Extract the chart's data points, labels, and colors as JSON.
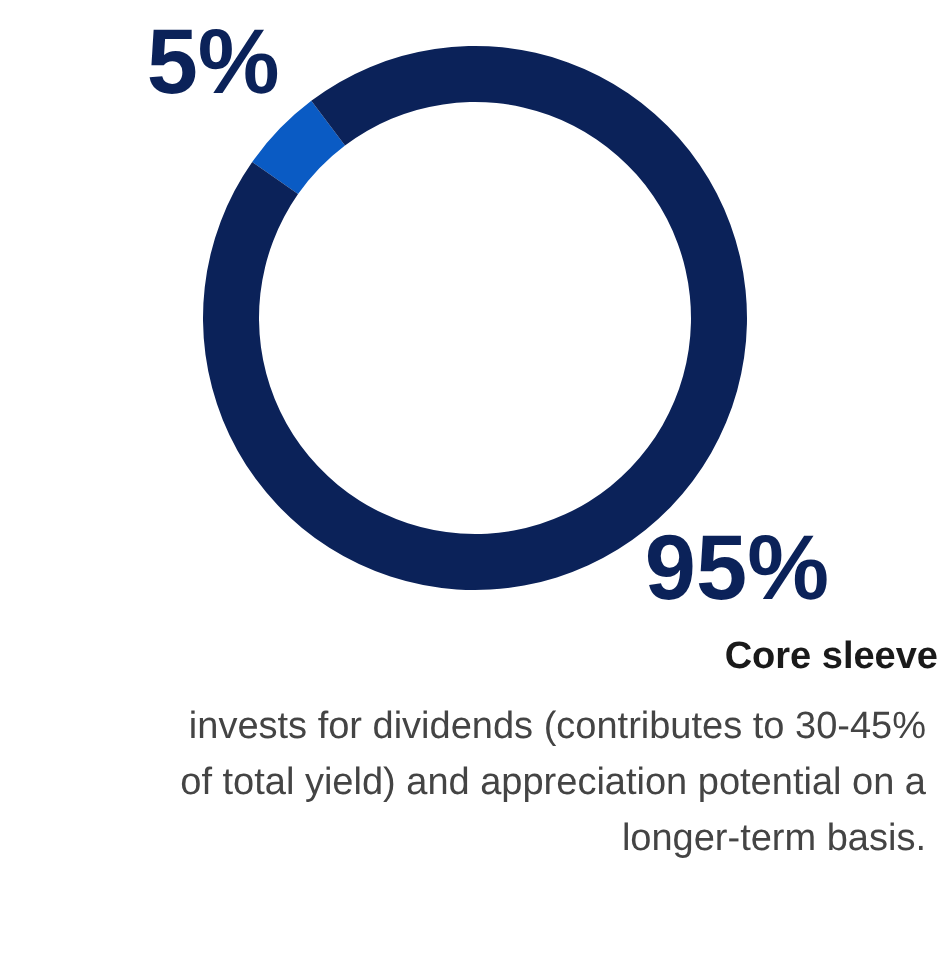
{
  "chart_data": {
    "type": "donut",
    "categories": [
      null,
      "Core sleeve"
    ],
    "values": [
      5,
      95
    ],
    "colors": [
      "#0a5bc4",
      "#0b2259"
    ],
    "value_labels": [
      "5%",
      "95%"
    ],
    "annotations": [
      "invests for dividends (contributes to 30-45% of total yield) and appreciation potential on a longer-term basis."
    ]
  }
}
